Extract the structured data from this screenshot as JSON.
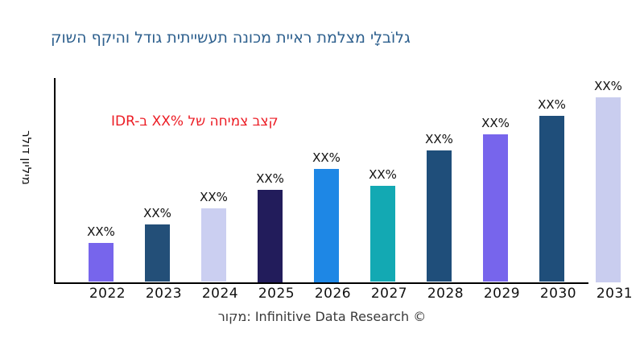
{
  "title": {
    "text": "קושה ףקיהו לדוג תיתיישעת הנוכמ תייאר תמלצמ ילָבוֹלג",
    "color": "#2E608E"
  },
  "annotation": {
    "text": "IDR-ב XX% לש החימצ בצק",
    "color": "#EC1C24"
  },
  "y_axis": {
    "label": "רלוד ןוילימ"
  },
  "caption": {
    "text": "רוקמ: Infinitive Data Research ©",
    "color": "#3A3A3A"
  },
  "axis_color": "#000000",
  "label_color": "#111111",
  "chart_data": {
    "type": "bar",
    "title": "קושה ףקיהו לדוג תיתיישעת הנוכמ תייאר תמלצמ ילָבוֹלג",
    "categories": [
      "2022",
      "2023",
      "2024",
      "2025",
      "2026",
      "2027",
      "2028",
      "2029",
      "2030",
      "2031"
    ],
    "values": [
      19,
      28,
      36,
      45,
      55,
      47,
      64,
      72,
      81,
      90
    ],
    "value_labels": [
      "XX%",
      "XX%",
      "XX%",
      "XX%",
      "XX%",
      "XX%",
      "XX%",
      "XX%",
      "XX%",
      "XX%"
    ],
    "bar_colors": [
      "#7765EC",
      "#234F78",
      "#CBCFF1",
      "#221C5B",
      "#1E87E5",
      "#13A9B3",
      "#1F4E7A",
      "#7765EC",
      "#1F4E7A",
      "#C9CDEF"
    ],
    "xlabel": "",
    "ylabel": "רלוד ןוילימ",
    "ylim": [
      0,
      100
    ],
    "grid": false,
    "legend": false
  }
}
